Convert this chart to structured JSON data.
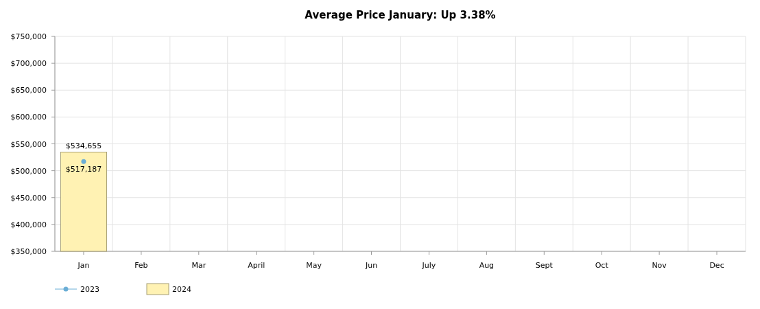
{
  "chart_data": {
    "type": "bar",
    "title": "Average Price January: Up 3.38%",
    "categories": [
      "Jan",
      "Feb",
      "Mar",
      "April",
      "May",
      "Jun",
      "July",
      "Aug",
      "Sept",
      "Oct",
      "Nov",
      "Dec"
    ],
    "series": [
      {
        "name": "2023",
        "type": "line",
        "marker": "circle",
        "color": "#6baed6",
        "values": [
          517187,
          null,
          null,
          null,
          null,
          null,
          null,
          null,
          null,
          null,
          null,
          null
        ],
        "value_labels": [
          "$517,187",
          null,
          null,
          null,
          null,
          null,
          null,
          null,
          null,
          null,
          null,
          null
        ]
      },
      {
        "name": "2024",
        "color": "#fff2b3",
        "values": [
          534655,
          null,
          null,
          null,
          null,
          null,
          null,
          null,
          null,
          null,
          null,
          null
        ],
        "value_labels": [
          "$534,655",
          null,
          null,
          null,
          null,
          null,
          null,
          null,
          null,
          null,
          null,
          null
        ]
      }
    ],
    "ylim": [
      350000,
      750000
    ],
    "yticks": [
      {
        "value": 350000,
        "label": "$350,000"
      },
      {
        "value": 400000,
        "label": "$400,000"
      },
      {
        "value": 450000,
        "label": "$450,000"
      },
      {
        "value": 500000,
        "label": "$500,000"
      },
      {
        "value": 550000,
        "label": "$550,000"
      },
      {
        "value": 600000,
        "label": "$600,000"
      },
      {
        "value": 650000,
        "label": "$650,000"
      },
      {
        "value": 700000,
        "label": "$700,000"
      },
      {
        "value": 750000,
        "label": "$750,000"
      }
    ],
    "grid": true,
    "legend": "bottom left"
  }
}
